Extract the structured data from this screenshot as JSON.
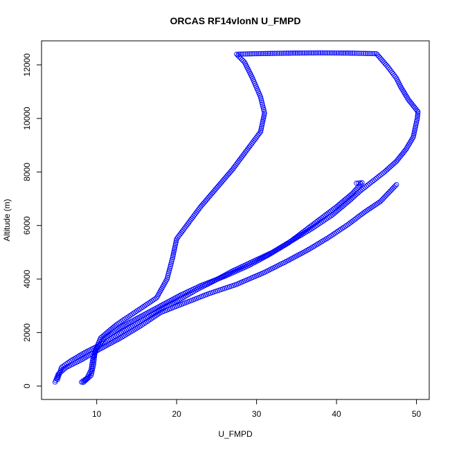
{
  "chart_data": {
    "type": "scatter",
    "title": "ORCAS RF14vlonN U_FMPD",
    "xlabel": "U_FMPD",
    "ylabel": "Altitude (m)",
    "xlim": [
      3.1,
      51.6
    ],
    "ylim": [
      -500,
      12900
    ],
    "xticks": [
      10,
      20,
      30,
      40,
      50
    ],
    "yticks": [
      0,
      2000,
      4000,
      6000,
      8000,
      10000,
      12000
    ],
    "grid": false,
    "marker": "open-circle",
    "color": "#0000ff",
    "series": [
      {
        "values": [
          [
            5.1,
            250
          ],
          [
            5.6,
            700
          ],
          [
            6.8,
            950
          ],
          [
            8.5,
            1250
          ],
          [
            10.5,
            1550
          ],
          [
            12.5,
            1900
          ],
          [
            14.5,
            2250
          ],
          [
            16.5,
            2600
          ],
          [
            18.5,
            2950
          ],
          [
            20.5,
            3250
          ],
          [
            22.5,
            3600
          ],
          [
            24.5,
            3900
          ],
          [
            27,
            4300
          ],
          [
            29.5,
            4650
          ],
          [
            32,
            5000
          ],
          [
            34.5,
            5450
          ],
          [
            37,
            5900
          ],
          [
            39.5,
            6400
          ],
          [
            41.5,
            6900
          ],
          [
            43,
            7300
          ],
          [
            44.5,
            7650
          ],
          [
            46,
            8000
          ],
          [
            47.5,
            8400
          ],
          [
            48.7,
            8850
          ],
          [
            49.6,
            9300
          ],
          [
            50.1,
            10000
          ],
          [
            50.2,
            10250
          ],
          [
            49,
            10700
          ],
          [
            48,
            11200
          ],
          [
            47.5,
            11500
          ],
          [
            46.5,
            11900
          ],
          [
            45,
            12420
          ],
          [
            42,
            12440
          ],
          [
            38,
            12450
          ],
          [
            34,
            12440
          ],
          [
            30,
            12420
          ],
          [
            27.5,
            12400
          ],
          [
            28.5,
            12100
          ],
          [
            29.5,
            11500
          ],
          [
            30.5,
            10800
          ],
          [
            31,
            10200
          ],
          [
            30.5,
            9500
          ],
          [
            29,
            8900
          ],
          [
            27,
            8100
          ],
          [
            25,
            7400
          ],
          [
            23,
            6700
          ],
          [
            21.5,
            6100
          ],
          [
            20,
            5500
          ],
          [
            19.5,
            4800
          ],
          [
            18.8,
            4000
          ],
          [
            17.5,
            3300
          ],
          [
            15,
            2800
          ],
          [
            12.5,
            2300
          ],
          [
            10.5,
            1800
          ],
          [
            9.8,
            1300
          ],
          [
            9.6,
            800
          ],
          [
            9.3,
            400
          ],
          [
            8.3,
            130
          ]
        ]
      },
      {
        "values": [
          [
            8.1,
            150
          ],
          [
            8.8,
            300
          ],
          [
            9.3,
            600
          ],
          [
            9.5,
            1000
          ],
          [
            10,
            1400
          ],
          [
            11,
            1800
          ],
          [
            13,
            2200
          ],
          [
            15.5,
            2600
          ],
          [
            18,
            3000
          ],
          [
            20.5,
            3400
          ],
          [
            23,
            3750
          ],
          [
            26,
            4100
          ],
          [
            29,
            4500
          ],
          [
            31.5,
            4900
          ],
          [
            34,
            5350
          ],
          [
            36,
            5800
          ],
          [
            38,
            6250
          ],
          [
            40,
            6700
          ],
          [
            42,
            7200
          ],
          [
            43.2,
            7600
          ],
          [
            42.5,
            7580
          ]
        ]
      },
      {
        "values": [
          [
            4.8,
            150
          ],
          [
            5.2,
            450
          ],
          [
            6.2,
            700
          ],
          [
            8.2,
            1000
          ],
          [
            10.5,
            1400
          ],
          [
            13,
            1800
          ],
          [
            15.5,
            2250
          ],
          [
            18,
            2750
          ],
          [
            21,
            3100
          ],
          [
            24,
            3450
          ],
          [
            27.5,
            3800
          ],
          [
            31,
            4250
          ],
          [
            34,
            4700
          ],
          [
            36.5,
            5100
          ],
          [
            39,
            5550
          ],
          [
            41.5,
            6050
          ],
          [
            43.5,
            6500
          ],
          [
            45.5,
            6900
          ],
          [
            47.5,
            7530
          ]
        ]
      }
    ]
  }
}
